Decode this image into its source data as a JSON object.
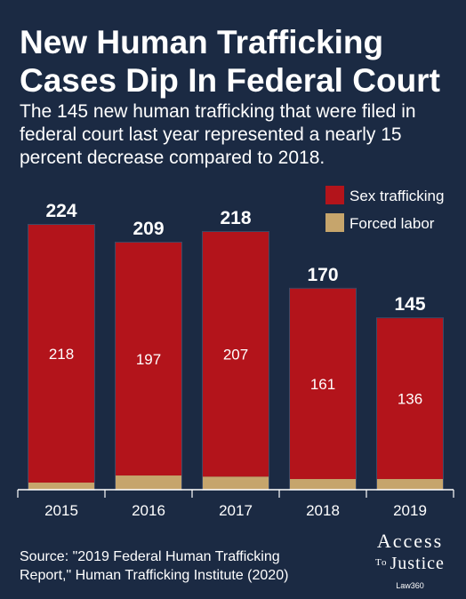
{
  "title_line1": "New Human Trafficking",
  "title_line2": "Cases Dip In Federal Court",
  "subtitle": "The 145 new human trafficking that were filed in federal court last year represented a nearly 15 percent decrease compared to 2018.",
  "source_line1": "Source: \"2019 Federal Human Trafficking",
  "source_line2": "Report,\" Human Trafficking Institute (2020)",
  "logo": {
    "line1": "Access",
    "line2_small": "To",
    "line2": "Justice",
    "line3": "Law360"
  },
  "colors": {
    "background": "#1b2a43",
    "sex": "#b3141b",
    "labor": "#c6a56c",
    "bar_outline": "#3c4a66"
  },
  "chart_data": {
    "type": "bar",
    "stacked": true,
    "categories": [
      "2015",
      "2016",
      "2017",
      "2018",
      "2019"
    ],
    "series": [
      {
        "name": "Sex trafficking",
        "values": [
          218,
          197,
          207,
          161,
          136
        ],
        "color": "#b3141b"
      },
      {
        "name": "Forced labor",
        "values": [
          6,
          12,
          11,
          9,
          9
        ],
        "color": "#c6a56c"
      }
    ],
    "totals": [
      224,
      209,
      218,
      170,
      145
    ],
    "ylim": [
      0,
      224
    ],
    "grid": false,
    "legend": "top-right"
  }
}
